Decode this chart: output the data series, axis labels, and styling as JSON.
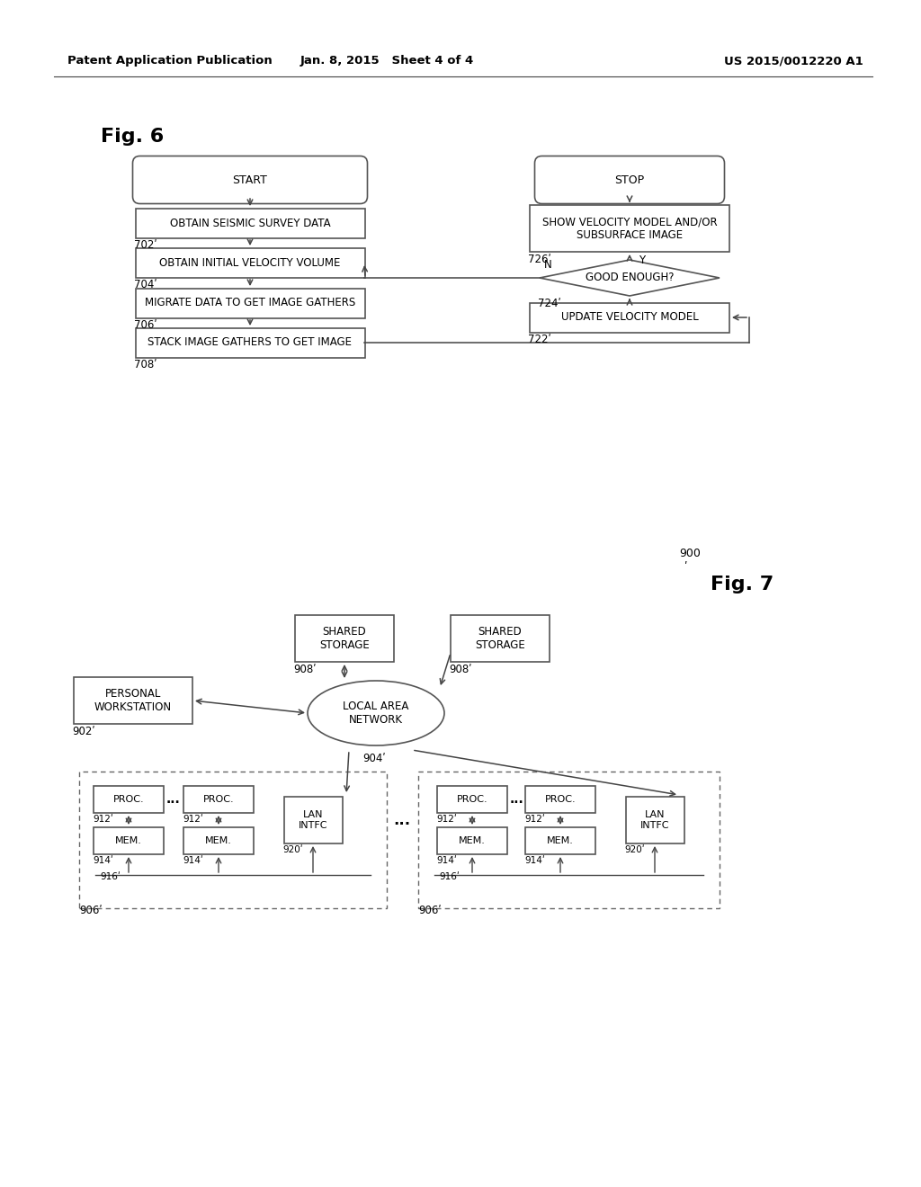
{
  "bg_color": "#ffffff",
  "header_left": "Patent Application Publication",
  "header_center": "Jan. 8, 2015   Sheet 4 of 4",
  "header_right": "US 2015/0012220 A1",
  "fig6_label": "Fig. 6",
  "fig7_label": "Fig. 7",
  "fig7_ref": "900"
}
